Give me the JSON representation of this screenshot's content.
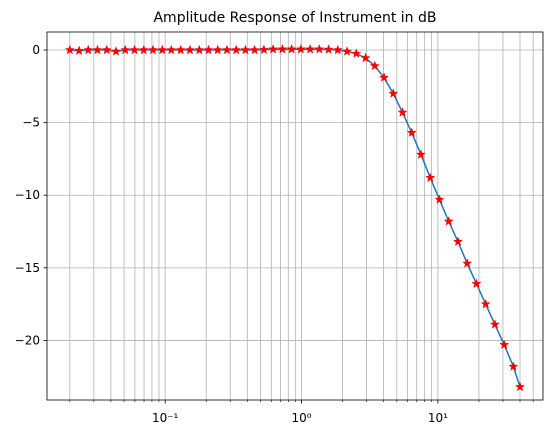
{
  "chart_data": {
    "type": "line",
    "title": "Amplitude Response of Instrument in dB",
    "xscale": "log",
    "grid": true,
    "xlim": [
      0.0136,
      59
    ],
    "ylim": [
      -24.1,
      1.24
    ],
    "xticks": [
      {
        "value": 0.1,
        "label": "10⁻¹"
      },
      {
        "value": 1,
        "label": "10⁰"
      },
      {
        "value": 10,
        "label": "10¹"
      }
    ],
    "xticks_minor": [
      0.02,
      0.03,
      0.04,
      0.05,
      0.06,
      0.07,
      0.08,
      0.09,
      0.2,
      0.3,
      0.4,
      0.5,
      0.6,
      0.7,
      0.8,
      0.9,
      2,
      3,
      4,
      5,
      6,
      7,
      8,
      9,
      20,
      30,
      40,
      50
    ],
    "yticks": [
      0,
      {
        "value": -5,
        "label": "−5"
      },
      {
        "value": -10,
        "label": "−10"
      },
      {
        "value": -15,
        "label": "−15"
      },
      {
        "value": -20,
        "label": "−20"
      }
    ],
    "line_color": "#1f77b4",
    "marker_color": "#ff0000",
    "x": [
      0.02,
      0.0234,
      0.0273,
      0.0319,
      0.0373,
      0.0436,
      0.051,
      0.0596,
      0.0697,
      0.0814,
      0.0952,
      0.111,
      0.13,
      0.152,
      0.178,
      0.208,
      0.243,
      0.284,
      0.332,
      0.388,
      0.453,
      0.53,
      0.619,
      0.724,
      0.846,
      0.989,
      1.156,
      1.351,
      1.579,
      1.846,
      2.158,
      2.522,
      2.948,
      3.446,
      4.028,
      4.708,
      5.503,
      6.433,
      7.519,
      8.789,
      10.27,
      12.01,
      14.04,
      16.41,
      19.18,
      22.42,
      26.2,
      30.63,
      35.8,
      40
    ],
    "values": [
      0,
      -0.05,
      0,
      0,
      0,
      -0.1,
      0,
      0,
      0,
      0,
      0,
      0,
      0,
      0,
      0,
      0,
      0,
      0,
      0,
      0,
      0,
      0.02,
      0.05,
      0.05,
      0.05,
      0.05,
      0.05,
      0.05,
      0.03,
      0,
      -0.1,
      -0.25,
      -0.55,
      -1.1,
      -1.9,
      -3.0,
      -4.3,
      -5.7,
      -7.2,
      -8.8,
      -10.3,
      -11.8,
      -13.2,
      -14.7,
      -16.1,
      -17.5,
      -18.9,
      -20.3,
      -21.8,
      -23.2
    ]
  }
}
